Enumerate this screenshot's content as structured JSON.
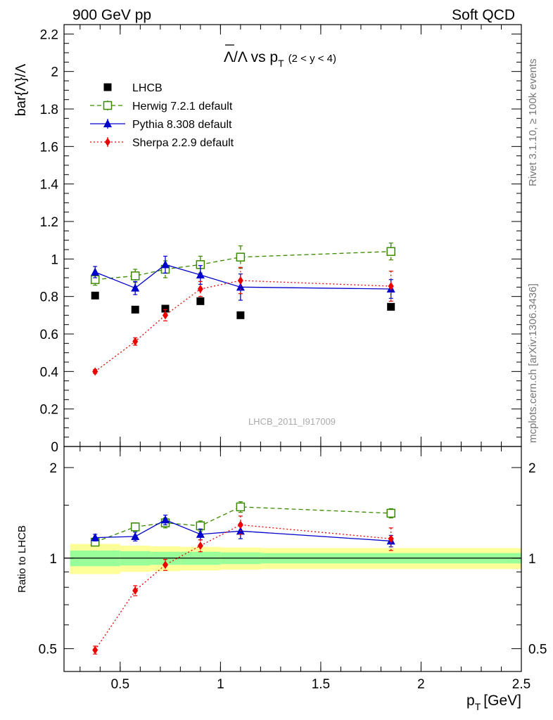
{
  "header": {
    "left": "900 GeV pp",
    "right": "Soft QCD"
  },
  "side_text": {
    "rivet": "Rivet 3.1.10, ≥ 100k events",
    "mcplots": "mcplots.cern.ch [arXiv:1306.3436]"
  },
  "watermark": "LHCB_2011_I917009",
  "chart_data": [
    {
      "type": "scatter",
      "panel": "main",
      "title": "Λ̄/Λ vs p_T (2 < y < 4)",
      "title_parts": {
        "main": "Λ/Λ vs p",
        "sub": "T",
        "cond": "(2 < y < 4)"
      },
      "ylabel": "bar{Λ}/Λ",
      "ylim": [
        0,
        2.25
      ],
      "yticks": [
        0,
        0.2,
        0.4,
        0.6,
        0.8,
        1,
        1.2,
        1.4,
        1.6,
        1.8,
        2,
        2.2
      ],
      "ytick_labels": [
        "0",
        "0.2",
        "0.4",
        "0.6",
        "0.8",
        "1",
        "1.2",
        "1.4",
        "1.6",
        "1.8",
        "2",
        "2.2"
      ],
      "xlim": [
        0.22,
        2.5
      ],
      "legend_position": "top-left",
      "series": [
        {
          "name": "LHCB",
          "color": "#000000",
          "marker": "square-filled",
          "line": "none",
          "x": [
            0.375,
            0.575,
            0.725,
            0.9,
            1.1,
            1.85
          ],
          "y": [
            0.805,
            0.73,
            0.735,
            0.775,
            0.7,
            0.745
          ],
          "err": [
            0.015,
            0.015,
            0.015,
            0.015,
            0.015,
            0.015
          ]
        },
        {
          "name": "Herwig 7.2.1 default",
          "color": "#3a8a00",
          "marker": "square-open",
          "line": "dashed",
          "x": [
            0.375,
            0.575,
            0.725,
            0.9,
            1.1,
            1.85
          ],
          "y": [
            0.89,
            0.91,
            0.945,
            0.97,
            1.01,
            1.04
          ],
          "err": [
            0.03,
            0.035,
            0.045,
            0.045,
            0.06,
            0.045
          ]
        },
        {
          "name": "Pythia 8.308 default",
          "color": "#0000cc",
          "marker": "triangle",
          "line": "solid",
          "x": [
            0.375,
            0.575,
            0.725,
            0.9,
            1.1,
            1.85
          ],
          "y": [
            0.93,
            0.845,
            0.97,
            0.915,
            0.85,
            0.84
          ],
          "err": [
            0.03,
            0.035,
            0.045,
            0.05,
            0.07,
            0.05
          ]
        },
        {
          "name": "Sherpa 2.2.9 default",
          "color": "#ee0000",
          "marker": "diamond",
          "line": "dotted",
          "x": [
            0.375,
            0.575,
            0.725,
            0.9,
            1.1,
            1.85
          ],
          "y": [
            0.4,
            0.56,
            0.7,
            0.84,
            0.885,
            0.855
          ],
          "err": [
            0.01,
            0.02,
            0.03,
            0.04,
            0.07,
            0.08
          ]
        }
      ]
    },
    {
      "type": "scatter",
      "panel": "ratio",
      "ylabel": "Ratio to LHCB",
      "yscale": "log",
      "ylim": [
        0.42,
        2.35
      ],
      "yticks": [
        0.5,
        1,
        2
      ],
      "ytick_labels": [
        "0.5",
        "1",
        "2"
      ],
      "xlabel": "p_T [GeV]",
      "xlabel_parts": {
        "main": "p",
        "sub": "T",
        "unit": "[GeV]"
      },
      "xlim": [
        0.22,
        2.5
      ],
      "xticks": [
        0.5,
        1,
        1.5,
        2,
        2.5
      ],
      "xtick_labels": [
        "0.5",
        "1",
        "1.5",
        "2",
        "2.5"
      ],
      "bands": {
        "x_edges": [
          0.25,
          0.5,
          0.65,
          0.8,
          1.0,
          1.2,
          2.5
        ],
        "inner": [
          0.06,
          0.055,
          0.05,
          0.05,
          0.045,
          0.04
        ],
        "outer": [
          0.115,
          0.1,
          0.095,
          0.09,
          0.085,
          0.08
        ],
        "inner_color": "#99ff99",
        "outer_color": "#ffff99"
      },
      "series": [
        {
          "name": "Herwig 7.2.1 default",
          "color": "#3a8a00",
          "marker": "square-open",
          "line": "dashed",
          "x": [
            0.375,
            0.575,
            0.725,
            0.9,
            1.1,
            1.85
          ],
          "y": [
            1.13,
            1.27,
            1.31,
            1.28,
            1.48,
            1.41
          ],
          "err": [
            0.03,
            0.04,
            0.05,
            0.05,
            0.06,
            0.05
          ]
        },
        {
          "name": "Pythia 8.308 default",
          "color": "#0000cc",
          "marker": "triangle",
          "line": "solid",
          "x": [
            0.375,
            0.575,
            0.725,
            0.9,
            1.1,
            1.85
          ],
          "y": [
            1.17,
            1.18,
            1.34,
            1.2,
            1.23,
            1.14
          ],
          "err": [
            0.03,
            0.04,
            0.05,
            0.05,
            0.07,
            0.05
          ]
        },
        {
          "name": "Sherpa 2.2.9 default",
          "color": "#ee0000",
          "marker": "diamond",
          "line": "dotted",
          "x": [
            0.375,
            0.575,
            0.725,
            0.9,
            1.1,
            1.85
          ],
          "y": [
            0.495,
            0.78,
            0.95,
            1.1,
            1.29,
            1.16
          ],
          "err": [
            0.015,
            0.03,
            0.04,
            0.05,
            0.09,
            0.1
          ]
        }
      ]
    }
  ]
}
